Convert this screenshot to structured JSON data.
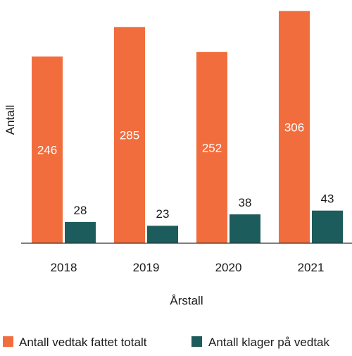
{
  "chart_data": {
    "type": "bar",
    "title": "",
    "xlabel": "Årstall",
    "ylabel": "Antall",
    "categories": [
      "2018",
      "2019",
      "2020",
      "2021"
    ],
    "series": [
      {
        "name": "Antall vedtak fattet totalt",
        "values": [
          246,
          285,
          252,
          306
        ],
        "color": "#f26d3d",
        "label_position": "inside"
      },
      {
        "name": "Antall klager på vedtak",
        "values": [
          28,
          23,
          38,
          43
        ],
        "color": "#1d5c5c",
        "label_position": "above"
      }
    ],
    "ylim": [
      0,
      315
    ],
    "grid": false,
    "legend_position": "bottom"
  }
}
